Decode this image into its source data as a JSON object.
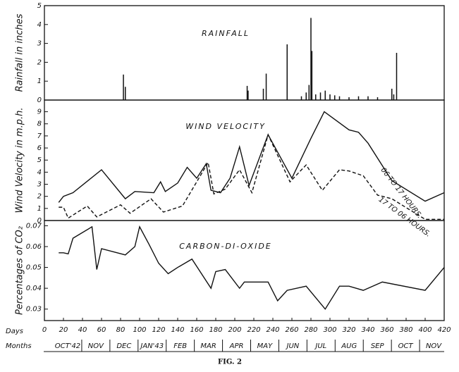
{
  "chart_data": [
    {
      "type": "bar",
      "title": "RAINFALL",
      "y_label": "Rainfall in inches",
      "color": "#111",
      "x": [
        83,
        85,
        213,
        214,
        230,
        233,
        255,
        270,
        275,
        278,
        280,
        281,
        285,
        290,
        295,
        300,
        305,
        310,
        320,
        330,
        340,
        350,
        365,
        367,
        370
      ],
      "values": [
        1.35,
        0.7,
        0.75,
        0.5,
        0.6,
        1.4,
        2.95,
        0.2,
        0.4,
        0.8,
        4.35,
        2.6,
        0.3,
        0.4,
        0.5,
        0.3,
        0.25,
        0.2,
        0.15,
        0.2,
        0.2,
        0.15,
        0.6,
        0.3,
        2.5
      ],
      "xlim": [
        0,
        420
      ],
      "ylim": [
        0,
        5
      ],
      "yticks": [
        0,
        1,
        2,
        3,
        4,
        5
      ]
    },
    {
      "type": "line",
      "title": "WIND VELOCITY",
      "y_label": "Wind Velocity in m.p.h.",
      "series": [
        {
          "name": "06 TO 17 HOURS.",
          "color": "#111",
          "line_style": "solid",
          "x": [
            15,
            20,
            30,
            60,
            85,
            95,
            115,
            122,
            127,
            140,
            150,
            160,
            170,
            175,
            185,
            195,
            205,
            215,
            235,
            260,
            280,
            294,
            320,
            330,
            340,
            365,
            400,
            420
          ],
          "values": [
            1.5,
            2.0,
            2.3,
            4.2,
            1.8,
            2.4,
            2.3,
            3.2,
            2.4,
            3.1,
            4.4,
            3.5,
            4.7,
            2.5,
            2.3,
            3.5,
            6.1,
            2.9,
            7.1,
            3.5,
            6.8,
            9.0,
            7.5,
            7.3,
            6.4,
            3.3,
            1.6,
            2.3
          ]
        },
        {
          "name": "17 TO 06 HOURS.",
          "color": "#111",
          "line_style": "dashed",
          "x": [
            15,
            20,
            25,
            45,
            55,
            80,
            90,
            112,
            125,
            145,
            172,
            178,
            190,
            205,
            218,
            235,
            258,
            275,
            292,
            310,
            320,
            335,
            350,
            365,
            400,
            420
          ],
          "values": [
            1.1,
            1.1,
            0.2,
            1.2,
            0.3,
            1.3,
            0.6,
            1.8,
            0.7,
            1.2,
            4.8,
            2.2,
            2.6,
            4.2,
            2.3,
            7.1,
            3.2,
            4.6,
            2.5,
            4.2,
            4.1,
            3.7,
            2.1,
            1.8,
            0.1,
            0.1
          ]
        }
      ],
      "xlim": [
        0,
        420
      ],
      "ylim": [
        0,
        9.5
      ],
      "yticks": [
        0,
        1,
        2,
        3,
        4,
        5,
        6,
        7,
        8,
        9
      ]
    },
    {
      "type": "line",
      "title": "CARBON-DI-OXIDE",
      "y_label": "Percentages of CO₂",
      "series": [
        {
          "color": "#111",
          "line_style": "solid",
          "x": [
            15,
            20,
            25,
            30,
            50,
            55,
            60,
            85,
            95,
            100,
            110,
            120,
            130,
            140,
            155,
            175,
            180,
            190,
            205,
            210,
            225,
            235,
            245,
            255,
            275,
            295,
            310,
            320,
            335,
            355,
            400,
            420
          ],
          "values": [
            0.057,
            0.057,
            0.0565,
            0.064,
            0.0695,
            0.049,
            0.059,
            0.056,
            0.06,
            0.0695,
            0.061,
            0.052,
            0.047,
            0.05,
            0.054,
            0.04,
            0.048,
            0.049,
            0.04,
            0.043,
            0.043,
            0.043,
            0.034,
            0.039,
            0.041,
            0.03,
            0.041,
            0.041,
            0.039,
            0.043,
            0.039,
            0.05
          ]
        }
      ],
      "xlim": [
        0,
        420
      ],
      "ylim": [
        0.0245,
        0.0725
      ],
      "yticks": [
        0.03,
        0.04,
        0.05,
        0.06,
        0.07
      ],
      "x_label": "Days",
      "months_label": "Months",
      "xticks": [
        0,
        20,
        40,
        60,
        80,
        100,
        120,
        140,
        160,
        180,
        200,
        220,
        240,
        260,
        280,
        300,
        320,
        340,
        360,
        380,
        400,
        420
      ],
      "months": [
        "OCT'42",
        "NOV",
        "DEC",
        "JAN'43",
        "FEB",
        "MAR",
        "APR",
        "MAY",
        "JUN",
        "JUL",
        "AUG",
        "SEP",
        "OCT",
        "NOV"
      ]
    }
  ],
  "caption": "FIG. 2"
}
